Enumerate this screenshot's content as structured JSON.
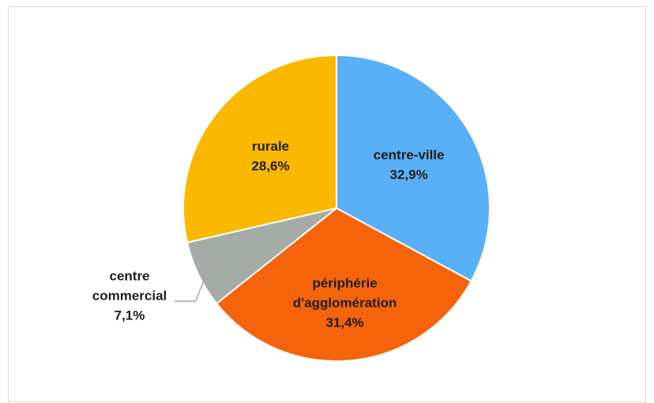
{
  "chart_data": {
    "type": "pie",
    "categories": [
      "centre-ville",
      "périphérie d'agglomération",
      "centre commercial",
      "rurale"
    ],
    "values": [
      32.9,
      31.4,
      7.1,
      28.6
    ],
    "value_labels": [
      "32,9%",
      "31,4%",
      "7,1%",
      "28,6%"
    ],
    "colors": [
      "#5ab0f6",
      "#f5640a",
      "#a5aba7",
      "#fbb800"
    ]
  }
}
